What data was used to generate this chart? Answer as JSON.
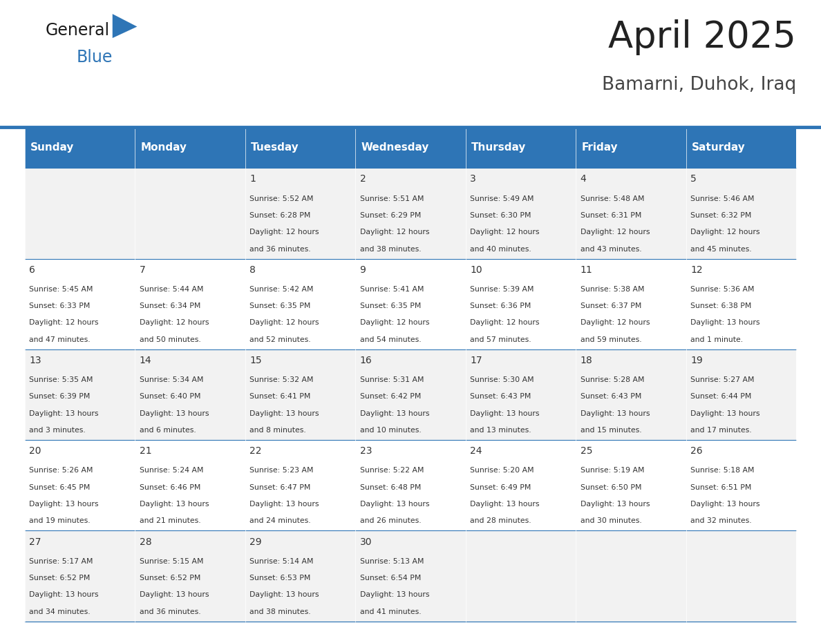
{
  "title": "April 2025",
  "subtitle": "Bamarni, Duhok, Iraq",
  "header_color": "#2E75B6",
  "header_text_color": "#FFFFFF",
  "cell_bg_even": "#F2F2F2",
  "cell_bg_odd": "#FFFFFF",
  "day_headers": [
    "Sunday",
    "Monday",
    "Tuesday",
    "Wednesday",
    "Thursday",
    "Friday",
    "Saturday"
  ],
  "title_color": "#222222",
  "subtitle_color": "#444444",
  "line_color": "#2E75B6",
  "days_data": [
    {
      "day": 1,
      "col": 2,
      "row": 0,
      "sunrise": "5:52 AM",
      "sunset": "6:28 PM",
      "daylight": "12 hours\nand 36 minutes."
    },
    {
      "day": 2,
      "col": 3,
      "row": 0,
      "sunrise": "5:51 AM",
      "sunset": "6:29 PM",
      "daylight": "12 hours\nand 38 minutes."
    },
    {
      "day": 3,
      "col": 4,
      "row": 0,
      "sunrise": "5:49 AM",
      "sunset": "6:30 PM",
      "daylight": "12 hours\nand 40 minutes."
    },
    {
      "day": 4,
      "col": 5,
      "row": 0,
      "sunrise": "5:48 AM",
      "sunset": "6:31 PM",
      "daylight": "12 hours\nand 43 minutes."
    },
    {
      "day": 5,
      "col": 6,
      "row": 0,
      "sunrise": "5:46 AM",
      "sunset": "6:32 PM",
      "daylight": "12 hours\nand 45 minutes."
    },
    {
      "day": 6,
      "col": 0,
      "row": 1,
      "sunrise": "5:45 AM",
      "sunset": "6:33 PM",
      "daylight": "12 hours\nand 47 minutes."
    },
    {
      "day": 7,
      "col": 1,
      "row": 1,
      "sunrise": "5:44 AM",
      "sunset": "6:34 PM",
      "daylight": "12 hours\nand 50 minutes."
    },
    {
      "day": 8,
      "col": 2,
      "row": 1,
      "sunrise": "5:42 AM",
      "sunset": "6:35 PM",
      "daylight": "12 hours\nand 52 minutes."
    },
    {
      "day": 9,
      "col": 3,
      "row": 1,
      "sunrise": "5:41 AM",
      "sunset": "6:35 PM",
      "daylight": "12 hours\nand 54 minutes."
    },
    {
      "day": 10,
      "col": 4,
      "row": 1,
      "sunrise": "5:39 AM",
      "sunset": "6:36 PM",
      "daylight": "12 hours\nand 57 minutes."
    },
    {
      "day": 11,
      "col": 5,
      "row": 1,
      "sunrise": "5:38 AM",
      "sunset": "6:37 PM",
      "daylight": "12 hours\nand 59 minutes."
    },
    {
      "day": 12,
      "col": 6,
      "row": 1,
      "sunrise": "5:36 AM",
      "sunset": "6:38 PM",
      "daylight": "13 hours\nand 1 minute."
    },
    {
      "day": 13,
      "col": 0,
      "row": 2,
      "sunrise": "5:35 AM",
      "sunset": "6:39 PM",
      "daylight": "13 hours\nand 3 minutes."
    },
    {
      "day": 14,
      "col": 1,
      "row": 2,
      "sunrise": "5:34 AM",
      "sunset": "6:40 PM",
      "daylight": "13 hours\nand 6 minutes."
    },
    {
      "day": 15,
      "col": 2,
      "row": 2,
      "sunrise": "5:32 AM",
      "sunset": "6:41 PM",
      "daylight": "13 hours\nand 8 minutes."
    },
    {
      "day": 16,
      "col": 3,
      "row": 2,
      "sunrise": "5:31 AM",
      "sunset": "6:42 PM",
      "daylight": "13 hours\nand 10 minutes."
    },
    {
      "day": 17,
      "col": 4,
      "row": 2,
      "sunrise": "5:30 AM",
      "sunset": "6:43 PM",
      "daylight": "13 hours\nand 13 minutes."
    },
    {
      "day": 18,
      "col": 5,
      "row": 2,
      "sunrise": "5:28 AM",
      "sunset": "6:43 PM",
      "daylight": "13 hours\nand 15 minutes."
    },
    {
      "day": 19,
      "col": 6,
      "row": 2,
      "sunrise": "5:27 AM",
      "sunset": "6:44 PM",
      "daylight": "13 hours\nand 17 minutes."
    },
    {
      "day": 20,
      "col": 0,
      "row": 3,
      "sunrise": "5:26 AM",
      "sunset": "6:45 PM",
      "daylight": "13 hours\nand 19 minutes."
    },
    {
      "day": 21,
      "col": 1,
      "row": 3,
      "sunrise": "5:24 AM",
      "sunset": "6:46 PM",
      "daylight": "13 hours\nand 21 minutes."
    },
    {
      "day": 22,
      "col": 2,
      "row": 3,
      "sunrise": "5:23 AM",
      "sunset": "6:47 PM",
      "daylight": "13 hours\nand 24 minutes."
    },
    {
      "day": 23,
      "col": 3,
      "row": 3,
      "sunrise": "5:22 AM",
      "sunset": "6:48 PM",
      "daylight": "13 hours\nand 26 minutes."
    },
    {
      "day": 24,
      "col": 4,
      "row": 3,
      "sunrise": "5:20 AM",
      "sunset": "6:49 PM",
      "daylight": "13 hours\nand 28 minutes."
    },
    {
      "day": 25,
      "col": 5,
      "row": 3,
      "sunrise": "5:19 AM",
      "sunset": "6:50 PM",
      "daylight": "13 hours\nand 30 minutes."
    },
    {
      "day": 26,
      "col": 6,
      "row": 3,
      "sunrise": "5:18 AM",
      "sunset": "6:51 PM",
      "daylight": "13 hours\nand 32 minutes."
    },
    {
      "day": 27,
      "col": 0,
      "row": 4,
      "sunrise": "5:17 AM",
      "sunset": "6:52 PM",
      "daylight": "13 hours\nand 34 minutes."
    },
    {
      "day": 28,
      "col": 1,
      "row": 4,
      "sunrise": "5:15 AM",
      "sunset": "6:52 PM",
      "daylight": "13 hours\nand 36 minutes."
    },
    {
      "day": 29,
      "col": 2,
      "row": 4,
      "sunrise": "5:14 AM",
      "sunset": "6:53 PM",
      "daylight": "13 hours\nand 38 minutes."
    },
    {
      "day": 30,
      "col": 3,
      "row": 4,
      "sunrise": "5:13 AM",
      "sunset": "6:54 PM",
      "daylight": "13 hours\nand 41 minutes."
    }
  ]
}
